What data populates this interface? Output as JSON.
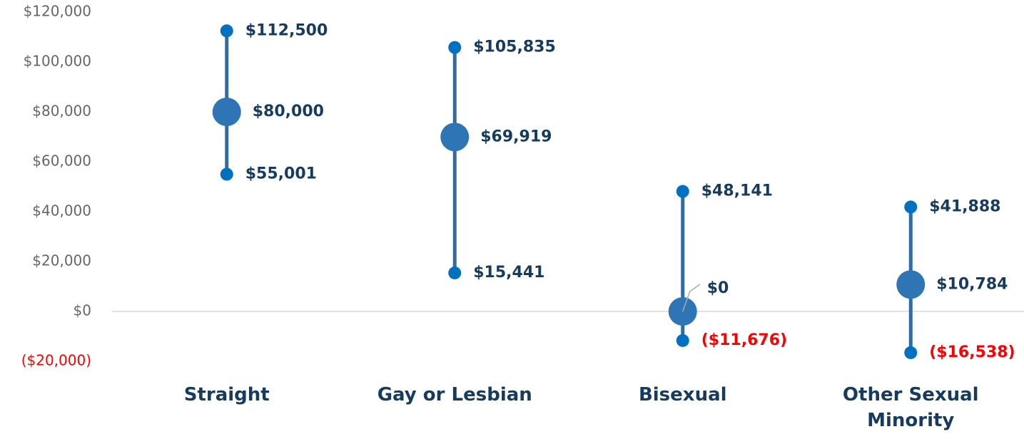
{
  "chart_data": {
    "type": "range",
    "categories": [
      "Straight",
      "Gay or Lesbian",
      "Bisexual",
      "Other Sexual Minority"
    ],
    "series": [
      {
        "color": "#0070c0",
        "values": [
          112500,
          105835,
          48141,
          41888
        ],
        "value_labels": [
          "$112,500",
          "$105,835",
          "$48,141",
          "$41,888"
        ]
      },
      {
        "color": "#2e75b6",
        "values": [
          80000,
          69919,
          0,
          10784
        ],
        "value_labels": [
          "$80,000",
          "$69,919",
          "$0",
          "$10,784"
        ]
      },
      {
        "color": "#0070c0",
        "values": [
          55001,
          15441,
          -11676,
          -16538
        ],
        "value_labels": [
          "$55,001",
          "$15,441",
          "($11,676)",
          "($16,538)"
        ]
      }
    ],
    "line_color": "#2e6da4",
    "label_color": "#173b5c",
    "negative_color": "#ff0000",
    "ylim": [
      -20000,
      120000
    ],
    "yticks": [
      {
        "value": -20000,
        "label": "($20,000)"
      },
      {
        "value": 0,
        "label": "$0"
      },
      {
        "value": 20000,
        "label": "$20,000"
      },
      {
        "value": 40000,
        "label": "$40,000"
      },
      {
        "value": 60000,
        "label": "$60,000"
      },
      {
        "value": 80000,
        "label": "$80,000"
      },
      {
        "value": 100000,
        "label": "$100,000"
      },
      {
        "value": 120000,
        "label": "$120,000"
      }
    ]
  }
}
